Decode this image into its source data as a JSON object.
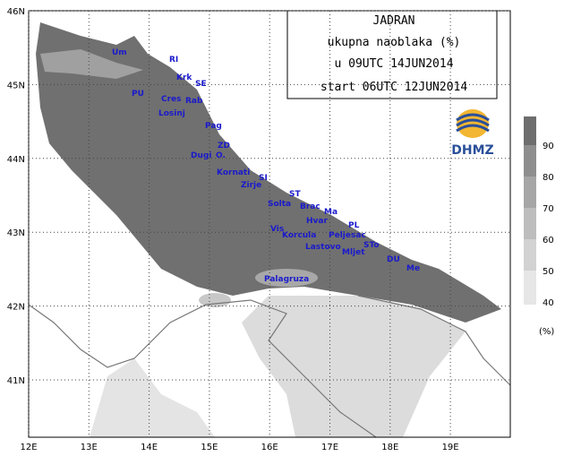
{
  "header": {
    "lines": [
      "JADRAN",
      "ukupna naoblaka (%)",
      "u 09UTC 14JUN2014",
      "start 06UTC 12JUN2014"
    ]
  },
  "logo": "DHMZ",
  "lon_ticks": [
    {
      "value": 12,
      "label": "12E"
    },
    {
      "value": 13,
      "label": "13E"
    },
    {
      "value": 14,
      "label": "14E"
    },
    {
      "value": 15,
      "label": "15E"
    },
    {
      "value": 16,
      "label": "16E"
    },
    {
      "value": 17,
      "label": "17E"
    },
    {
      "value": 18,
      "label": "18E"
    },
    {
      "value": 19,
      "label": "19E"
    }
  ],
  "lat_ticks": [
    {
      "value": 46,
      "label": "46N"
    },
    {
      "value": 45,
      "label": "45N"
    },
    {
      "value": 44,
      "label": "44N"
    },
    {
      "value": 43,
      "label": "43N"
    },
    {
      "value": 42,
      "label": "42N"
    },
    {
      "value": 41,
      "label": "41N"
    }
  ],
  "places": [
    "Um",
    "RI",
    "Krk",
    "SE",
    "PU",
    "Cres",
    "Rab",
    "Losinj",
    "Pag",
    "ZD",
    "Dugi",
    "O.",
    "Kornati",
    "SI",
    "Zirje",
    "ST",
    "Solta",
    "Brac",
    "Ma",
    "Hvar",
    "PL",
    "Vis",
    "Korcula",
    "Peljesac",
    "STo",
    "Lastovo",
    "Mljet",
    "DU",
    "Me",
    "Palagruza"
  ],
  "legend": {
    "levels": [
      40,
      50,
      60,
      70,
      80,
      90
    ],
    "colors": [
      "#e6e6e6",
      "#d2d2d2",
      "#bdbdbd",
      "#a6a6a6",
      "#8e8e8e",
      "#6e6e6e"
    ],
    "unit": "(%)"
  }
}
